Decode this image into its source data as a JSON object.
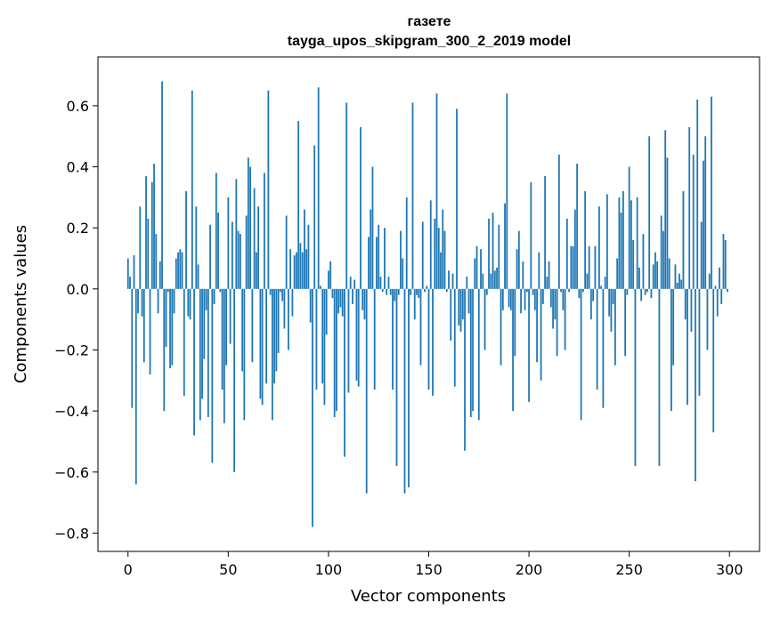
{
  "chart_data": {
    "type": "bar",
    "title": "газете",
    "subtitle": "tayga_upos_skipgram_300_2_2019 model",
    "xlabel": "Vector components",
    "ylabel": "Components values",
    "xlim": [
      -15,
      315
    ],
    "ylim": [
      -0.86,
      0.76
    ],
    "xticks": [
      0,
      50,
      100,
      150,
      200,
      250,
      300
    ],
    "xtick_labels": [
      "0",
      "50",
      "100",
      "150",
      "200",
      "250",
      "300"
    ],
    "yticks": [
      -0.8,
      -0.6,
      -0.4,
      -0.2,
      0.0,
      0.2,
      0.4,
      0.6
    ],
    "ytick_labels": [
      "−0.8",
      "−0.6",
      "−0.4",
      "−0.2",
      "0.0",
      "0.2",
      "0.4",
      "0.6"
    ],
    "grid": false,
    "bar_color": "#1f77b4",
    "x": "0..299 (component index)",
    "values": [
      0.1,
      0.04,
      -0.39,
      0.11,
      -0.64,
      -0.08,
      0.27,
      -0.09,
      -0.24,
      0.37,
      0.23,
      -0.28,
      0.35,
      0.41,
      0.18,
      -0.08,
      0.09,
      0.68,
      -0.4,
      -0.19,
      -0.01,
      -0.26,
      -0.25,
      -0.08,
      0.1,
      0.12,
      0.13,
      0.12,
      -0.35,
      0.32,
      -0.09,
      -0.1,
      0.65,
      -0.48,
      0.27,
      0.08,
      -0.43,
      -0.36,
      -0.23,
      -0.07,
      -0.42,
      0.21,
      -0.57,
      -0.05,
      0.38,
      0.25,
      -0.01,
      -0.33,
      -0.44,
      -0.25,
      0.3,
      -0.18,
      0.22,
      -0.6,
      0.36,
      0.19,
      0.18,
      -0.27,
      -0.43,
      0.24,
      0.43,
      0.4,
      -0.24,
      0.33,
      0.12,
      0.27,
      -0.36,
      -0.38,
      0.38,
      -0.31,
      0.65,
      -0.02,
      -0.43,
      -0.31,
      -0.27,
      -0.21,
      -0.01,
      -0.04,
      -0.13,
      0.24,
      -0.2,
      0.13,
      -0.09,
      0.11,
      0.12,
      0.55,
      0.15,
      0.12,
      0.26,
      0.13,
      0.21,
      -0.11,
      -0.78,
      0.47,
      -0.33,
      0.66,
      0.01,
      -0.31,
      -0.38,
      -0.15,
      0.06,
      0.09,
      -0.03,
      -0.42,
      -0.4,
      -0.08,
      -0.06,
      -0.09,
      -0.55,
      0.61,
      -0.34,
      0.04,
      -0.05,
      0.03,
      -0.3,
      -0.32,
      0.53,
      -0.07,
      -0.1,
      -0.67,
      0.17,
      0.26,
      0.4,
      -0.33,
      0.17,
      0.21,
      0.04,
      -0.01,
      0.2,
      -0.02,
      0.04,
      -0.02,
      -0.33,
      -0.04,
      -0.58,
      -0.02,
      0.19,
      0.1,
      -0.67,
      0.3,
      -0.65,
      -0.02,
      0.61,
      -0.1,
      -0.02,
      -0.03,
      -0.25,
      0.22,
      -0.01,
      0.01,
      -0.33,
      0.29,
      -0.35,
      0.23,
      0.64,
      0.2,
      0.12,
      0.26,
      0.19,
      -0.01,
      0.06,
      -0.17,
      0.05,
      -0.32,
      0.59,
      -0.12,
      -0.14,
      -0.1,
      -0.53,
      0.04,
      -0.08,
      -0.42,
      -0.4,
      0.1,
      0.14,
      -0.43,
      0.13,
      0.05,
      -0.2,
      -0.02,
      0.23,
      0.05,
      0.25,
      0.06,
      0.07,
      0.21,
      -0.25,
      -0.07,
      0.28,
      0.64,
      -0.06,
      -0.07,
      -0.4,
      -0.22,
      0.13,
      0.19,
      -0.08,
      0.09,
      -0.07,
      -0.01,
      -0.37,
      0.35,
      -0.02,
      -0.07,
      -0.24,
      0.12,
      -0.3,
      -0.05,
      0.37,
      0.04,
      0.09,
      -0.06,
      -0.13,
      -0.1,
      -0.22,
      0.44,
      -0.01,
      -0.07,
      -0.2,
      0.23,
      -0.01,
      0.14,
      0.14,
      0.26,
      0.41,
      -0.03,
      -0.43,
      -0.01,
      0.32,
      0.05,
      0.14,
      -0.1,
      -0.04,
      0.14,
      -0.33,
      0.27,
      0.01,
      -0.39,
      0.04,
      0.31,
      -0.09,
      -0.14,
      -0.05,
      -0.25,
      0.1,
      0.3,
      0.25,
      0.32,
      -0.22,
      -0.02,
      0.4,
      0.29,
      0.16,
      -0.58,
      0.3,
      0.07,
      -0.04,
      0.18,
      -0.02,
      -0.01,
      0.5,
      -0.03,
      0.08,
      0.12,
      0.09,
      -0.58,
      0.24,
      0.19,
      0.52,
      0.43,
      0.1,
      -0.4,
      -0.25,
      0.08,
      0.02,
      0.05,
      0.03,
      0.32,
      -0.1,
      -0.38,
      0.53,
      -0.14,
      0.44,
      -0.63,
      0.62,
      -0.35,
      0.22,
      0.42,
      0.5,
      -0.2,
      0.05,
      0.63,
      -0.47,
      0.01,
      -0.09,
      0.07,
      -0.05,
      0.18,
      0.16,
      -0.01
    ]
  }
}
